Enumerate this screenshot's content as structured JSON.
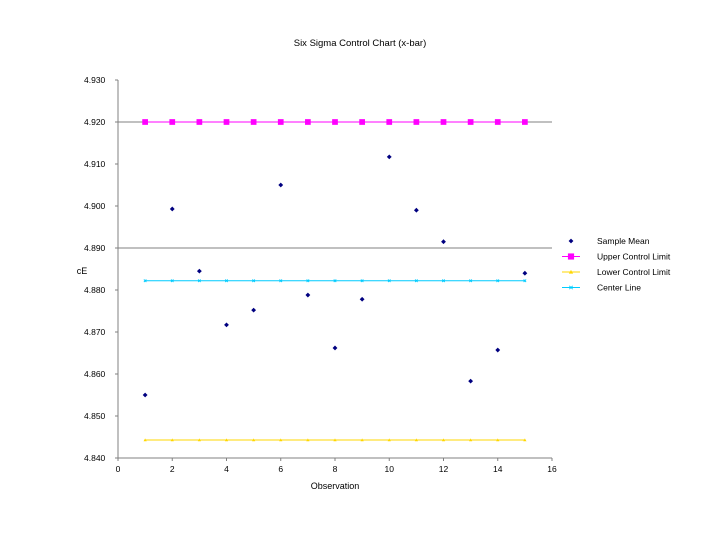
{
  "chart_data": {
    "type": "scatter",
    "title": "Six Sigma Control Chart (x-bar)",
    "xlabel": "Observation",
    "ylabel": "cE",
    "xlim": [
      0,
      16
    ],
    "ylim": [
      4.84,
      4.93
    ],
    "x_ticks": [
      "0",
      "2",
      "4",
      "6",
      "8",
      "10",
      "12",
      "14",
      "16"
    ],
    "y_ticks": [
      "4.840",
      "4.850",
      "4.860",
      "4.870",
      "4.880",
      "4.890",
      "4.900",
      "4.910",
      "4.920",
      "4.930"
    ],
    "gridlines_y": [
      4.89,
      4.92
    ],
    "legend_position": "right",
    "x": [
      1,
      2,
      3,
      4,
      5,
      6,
      7,
      8,
      9,
      10,
      11,
      12,
      13,
      14,
      15
    ],
    "series": [
      {
        "name": "Sample Mean",
        "marker": "diamond",
        "color": "#000080",
        "values": [
          4.855,
          4.8993,
          4.8845,
          4.8717,
          4.8752,
          4.905,
          4.8788,
          4.8662,
          4.8778,
          4.9117,
          4.899,
          4.8915,
          4.8583,
          4.8657,
          4.884
        ]
      },
      {
        "name": "Upper Control Limit",
        "marker": "square",
        "color": "#ff00ff",
        "values": [
          4.92,
          4.92,
          4.92,
          4.92,
          4.92,
          4.92,
          4.92,
          4.92,
          4.92,
          4.92,
          4.92,
          4.92,
          4.92,
          4.92,
          4.92
        ]
      },
      {
        "name": "Lower Control Limit",
        "marker": "triangle",
        "color": "#ffd700",
        "values": [
          4.8443,
          4.8443,
          4.8443,
          4.8443,
          4.8443,
          4.8443,
          4.8443,
          4.8443,
          4.8443,
          4.8443,
          4.8443,
          4.8443,
          4.8443,
          4.8443,
          4.8443
        ]
      },
      {
        "name": "Center Line",
        "marker": "x",
        "color": "#00ccff",
        "values": [
          4.8822,
          4.8822,
          4.8822,
          4.8822,
          4.8822,
          4.8822,
          4.8822,
          4.8822,
          4.8822,
          4.8822,
          4.8822,
          4.8822,
          4.8822,
          4.8822,
          4.8822
        ]
      }
    ]
  }
}
